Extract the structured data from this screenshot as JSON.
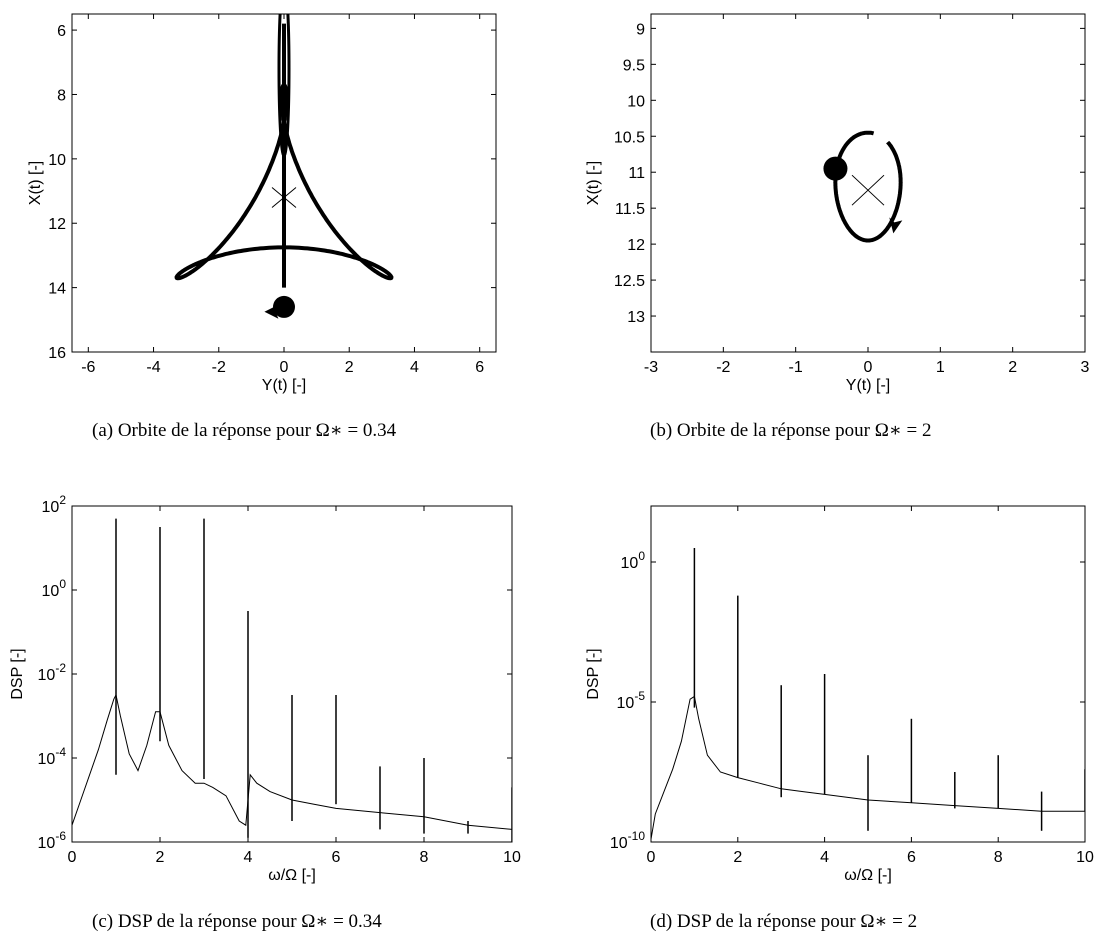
{
  "chart_data": [
    {
      "type": "line",
      "subtype": "orbit",
      "xlabel": "Y(t) [-]",
      "ylabel": "X(t) [-]",
      "xlim": [
        -6.5,
        6.5
      ],
      "ylim": [
        16,
        5.5
      ],
      "y_reversed": true,
      "xticks": [
        -6,
        -4,
        -2,
        0,
        2,
        4,
        6
      ],
      "yticks": [
        6,
        8,
        10,
        12,
        14,
        16
      ],
      "grid": false,
      "stem": {
        "x": 0,
        "y_start": 14,
        "y_end": 5.8
      },
      "start_marker": {
        "x": 0,
        "y": 14.6
      },
      "end_marker": {
        "x": 0,
        "y": 11.2
      },
      "caption": "(a) Orbite de la réponse pour Ω∗ = 0.34"
    },
    {
      "type": "line",
      "subtype": "orbit",
      "xlabel": "Y(t) [-]",
      "ylabel": "X(t) [-]",
      "xlim": [
        -3,
        3
      ],
      "ylim": [
        13.5,
        8.8
      ],
      "y_reversed": true,
      "xticks": [
        -3,
        -2,
        -1,
        0,
        1,
        2,
        3
      ],
      "yticks": [
        9,
        9.5,
        10,
        10.5,
        11,
        11.5,
        12,
        12.5,
        13
      ],
      "ytick_labels": [
        "9",
        "9.5",
        "10",
        "10.5",
        "11",
        "11.5",
        "12",
        "12.5",
        "13"
      ],
      "grid": false,
      "ellipse": {
        "cx": 0,
        "cy": 11.2,
        "rx": 0.45,
        "ry": 0.75
      },
      "start_marker": {
        "x": -0.45,
        "y": 10.95
      },
      "end_marker": {
        "x": 0,
        "y": 11.25
      },
      "caption": "(b) Orbite de la réponse pour Ω∗ = 2"
    },
    {
      "type": "line",
      "scale_y": "log",
      "xlabel": "ω/Ω [-]",
      "ylabel": "DSP [-]",
      "xlim": [
        0,
        10
      ],
      "ylim_exp": [
        -6,
        2
      ],
      "xticks": [
        0,
        2,
        4,
        6,
        8,
        10
      ],
      "ytick_exps": [
        -6,
        -4,
        -2,
        0,
        2
      ],
      "grid": false,
      "series": [
        {
          "x": [
            0,
            0.2,
            0.4,
            0.6,
            0.8,
            0.95,
            1.0,
            1.1,
            1.3,
            1.5,
            1.7,
            1.9,
            2.0,
            2.2,
            2.5,
            2.8,
            3.0,
            3.2,
            3.5,
            3.8,
            3.95,
            4.05,
            4.2,
            4.5,
            5.0,
            5.5,
            6.0,
            7.0,
            8.0,
            9.0,
            10.0
          ],
          "y_exp": [
            -5.6,
            -5.0,
            -4.4,
            -3.8,
            -3.1,
            -2.6,
            -2.5,
            -3.0,
            -3.9,
            -4.3,
            -3.7,
            -2.9,
            -2.9,
            -3.7,
            -4.3,
            -4.6,
            -4.6,
            -4.7,
            -4.9,
            -5.5,
            -5.6,
            -4.4,
            -4.6,
            -4.8,
            -5.0,
            -5.1,
            -5.2,
            -5.3,
            -5.4,
            -5.6,
            -5.7
          ]
        }
      ],
      "spikes": [
        {
          "x": 1,
          "top_exp": 1.7,
          "bottom_exp": -4.4
        },
        {
          "x": 2,
          "top_exp": 1.5,
          "bottom_exp": -3.6
        },
        {
          "x": 3,
          "top_exp": 1.7,
          "bottom_exp": -4.5
        },
        {
          "x": 4,
          "top_exp": -0.5,
          "bottom_exp": -5.9
        },
        {
          "x": 5,
          "top_exp": -2.5,
          "bottom_exp": -5.5
        },
        {
          "x": 6,
          "top_exp": -2.5,
          "bottom_exp": -5.1
        },
        {
          "x": 7,
          "top_exp": -4.2,
          "bottom_exp": -5.7
        },
        {
          "x": 8,
          "top_exp": -4.0,
          "bottom_exp": -5.8
        },
        {
          "x": 9,
          "top_exp": -5.5,
          "bottom_exp": -5.8
        },
        {
          "x": 10,
          "top_exp": -4.7,
          "bottom_exp": -6.0
        }
      ],
      "caption": "(c) DSP de la réponse pour Ω∗ = 0.34"
    },
    {
      "type": "line",
      "scale_y": "log",
      "xlabel": "ω/Ω [-]",
      "ylabel": "DSP [-]",
      "xlim": [
        0,
        10
      ],
      "ylim_exp": [
        -10,
        2
      ],
      "xticks": [
        0,
        2,
        4,
        6,
        8,
        10
      ],
      "ytick_exps": [
        -10,
        -5,
        0
      ],
      "grid": false,
      "series": [
        {
          "x": [
            0,
            0.1,
            0.3,
            0.5,
            0.7,
            0.9,
            1.0,
            1.1,
            1.3,
            1.6,
            2.0,
            2.5,
            3.0,
            3.5,
            4.0,
            5.0,
            6.0,
            7.0,
            8.0,
            9.0,
            10.0
          ],
          "y_exp": [
            -9.9,
            -9.0,
            -8.2,
            -7.4,
            -6.4,
            -4.9,
            -4.8,
            -5.6,
            -6.9,
            -7.5,
            -7.7,
            -7.9,
            -8.1,
            -8.2,
            -8.3,
            -8.5,
            -8.6,
            -8.7,
            -8.8,
            -8.9,
            -8.9
          ]
        }
      ],
      "spikes": [
        {
          "x": 1,
          "top_exp": 0.5,
          "bottom_exp": -5.2
        },
        {
          "x": 2,
          "top_exp": -1.2,
          "bottom_exp": -7.7
        },
        {
          "x": 3,
          "top_exp": -4.4,
          "bottom_exp": -8.4
        },
        {
          "x": 4,
          "top_exp": -4.0,
          "bottom_exp": -8.3
        },
        {
          "x": 5,
          "top_exp": -6.9,
          "bottom_exp": -9.6
        },
        {
          "x": 6,
          "top_exp": -5.6,
          "bottom_exp": -8.6
        },
        {
          "x": 7,
          "top_exp": -7.5,
          "bottom_exp": -8.8
        },
        {
          "x": 8,
          "top_exp": -6.9,
          "bottom_exp": -8.8
        },
        {
          "x": 9,
          "top_exp": -8.2,
          "bottom_exp": -9.6
        },
        {
          "x": 10,
          "top_exp": -7.4,
          "bottom_exp": -8.9
        }
      ],
      "caption": "(d) DSP de la réponse pour Ω∗ = 2"
    }
  ]
}
